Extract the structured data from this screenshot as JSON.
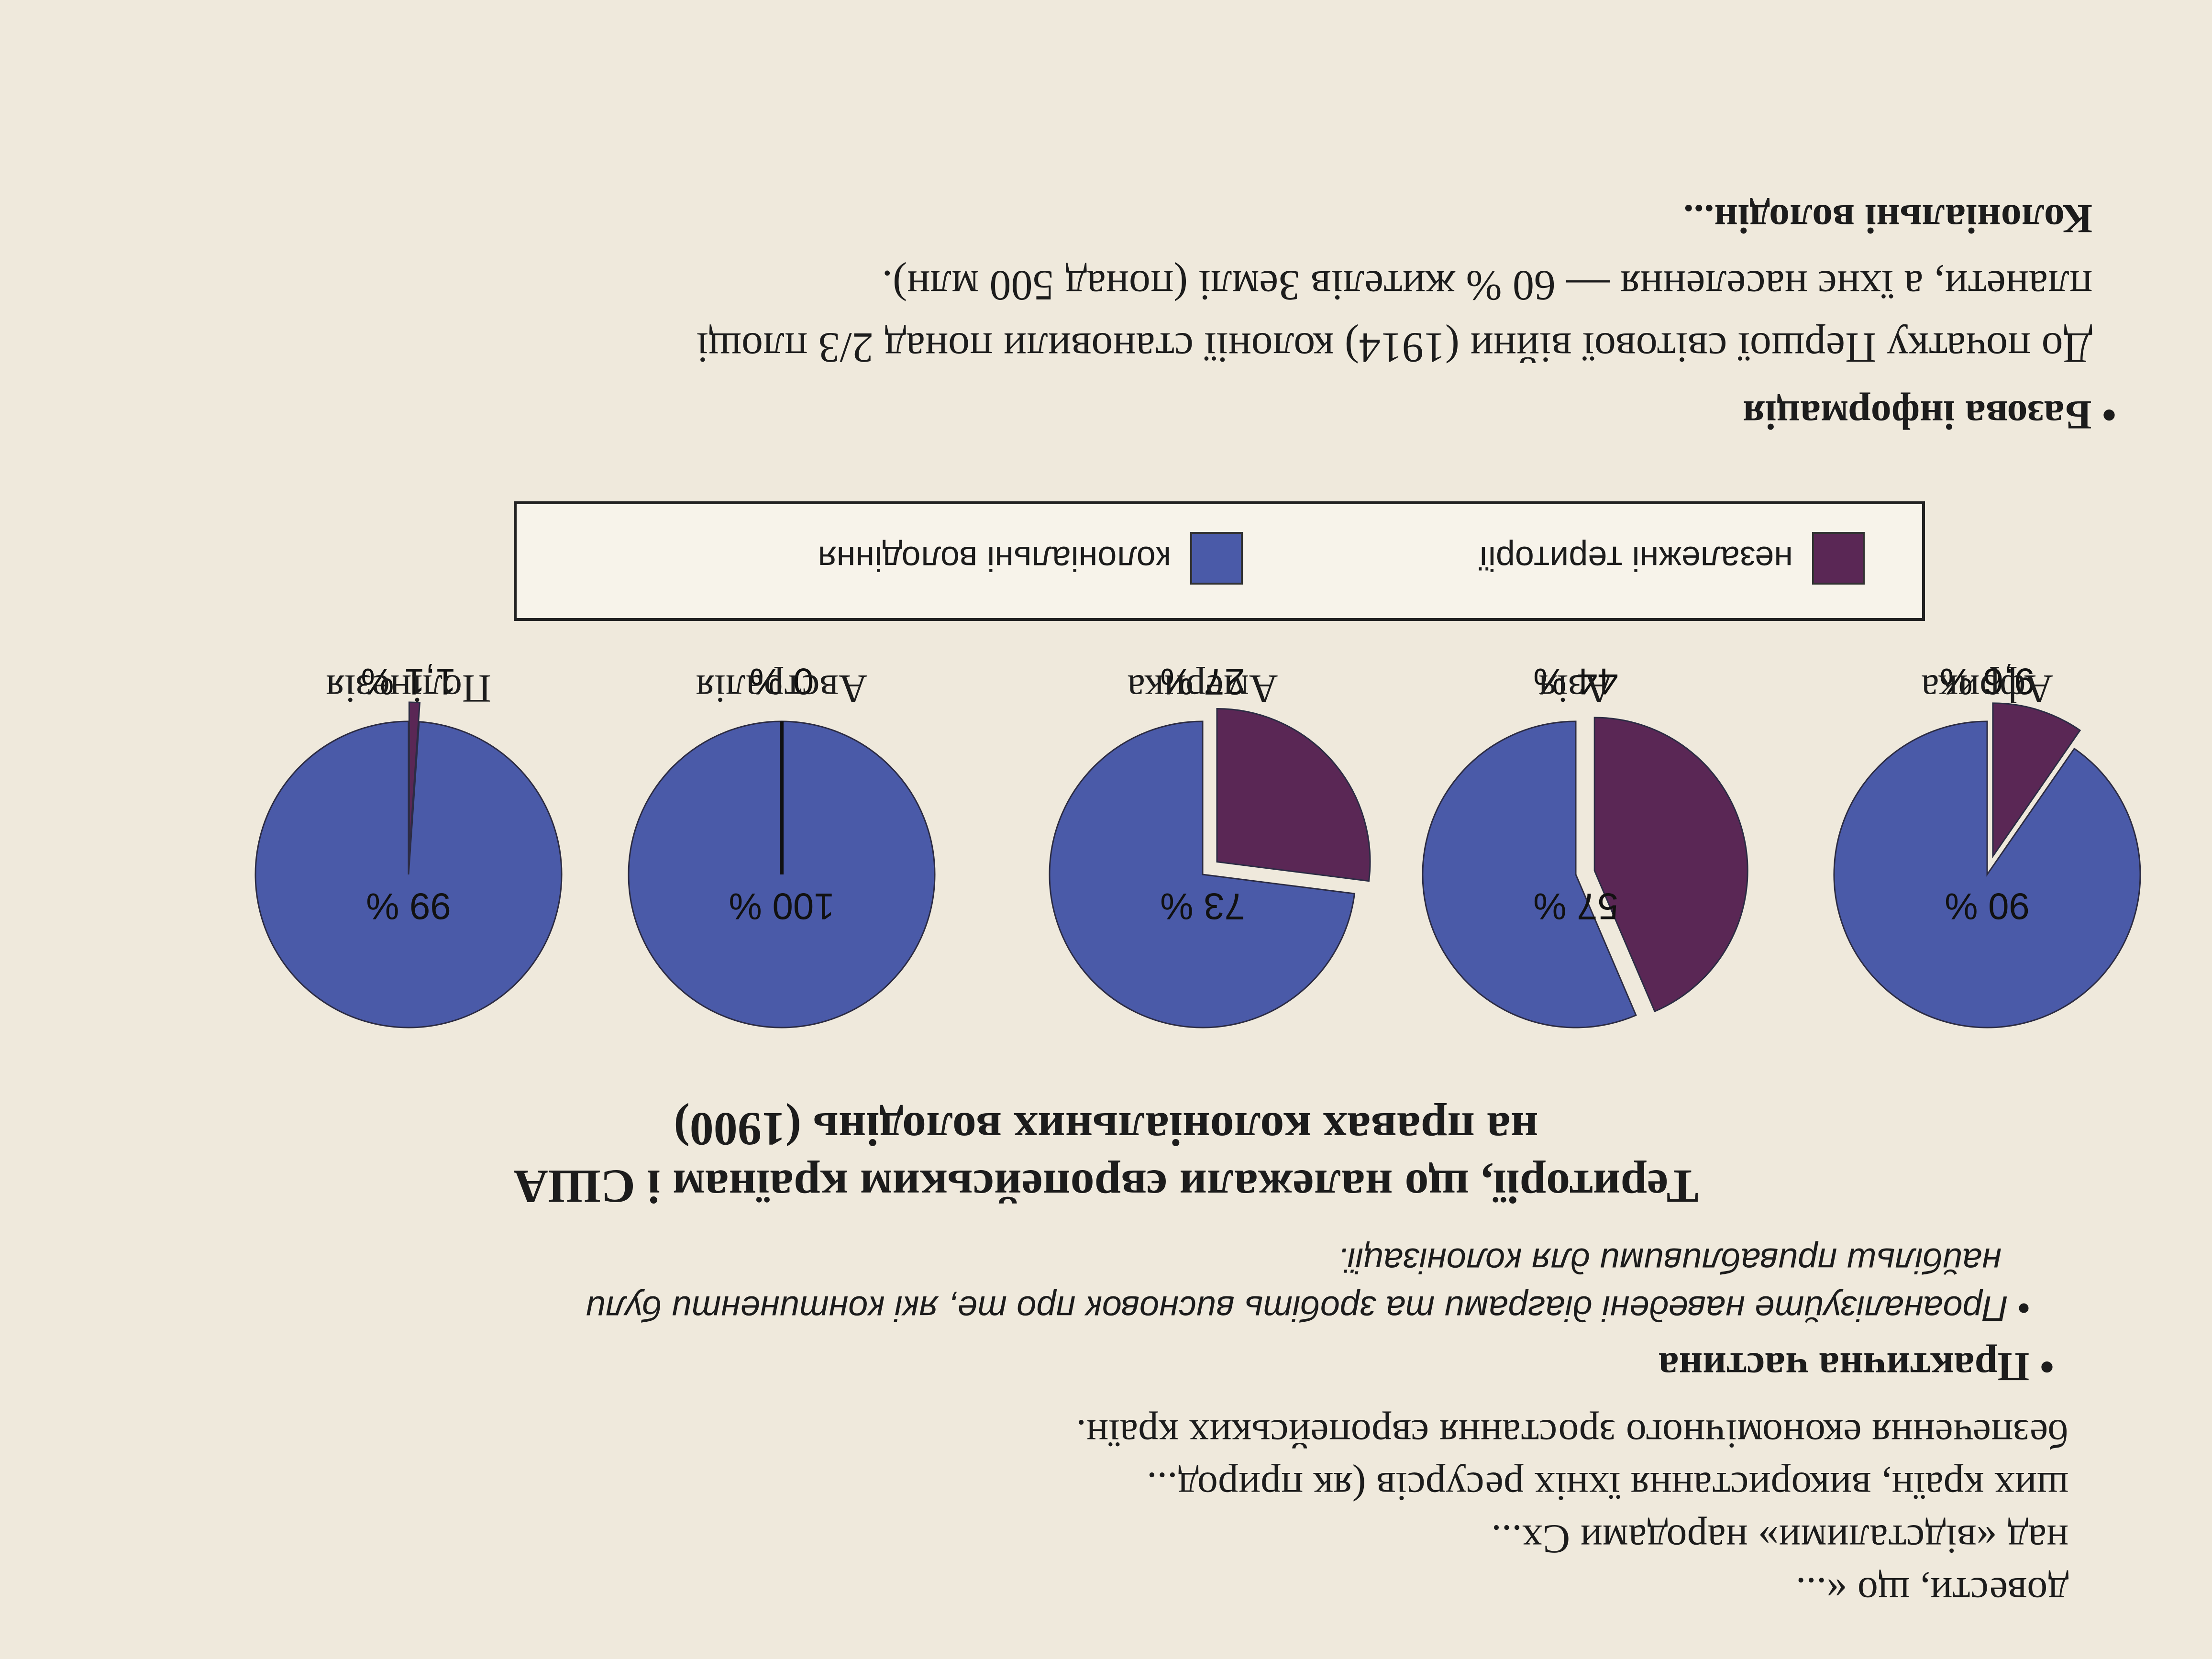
{
  "intro_lines": [
    "довести, що «...",
    "над «відсталими» народами Сх...",
    "ших країн, використання їхніх ресурсів (як природ...",
    "безпечення економічного зростання європейських країн."
  ],
  "practice": {
    "heading": "Практична частина",
    "task_line1": "Проаналізуйте наведені діаграми та зробіть висновок про те, які континенти були",
    "task_line2": "найбільш привабливими для колонізації."
  },
  "chart_title": {
    "line1": "Території, що належали європейським країнам і США",
    "line2": "на правах колоніальних володінь (1900)"
  },
  "colors": {
    "independent": "#5a2755",
    "colonial": "#4a5aa8"
  },
  "legend": {
    "independent": "незалежні території",
    "colonial": "колоніальні володіння"
  },
  "chart_data": {
    "type": "pie",
    "title": "Території, що належали європейським країнам і США на правах колоніальних володінь (1900)",
    "series_names": [
      "незалежні території",
      "колоніальні володіння"
    ],
    "pies": [
      {
        "category": "Африка",
        "independent": 9.6,
        "colonial": 90,
        "independent_label": "9,6 %",
        "colonial_label": "90 %"
      },
      {
        "category": "Азія",
        "independent": 44,
        "colonial": 57,
        "independent_label": "44 %",
        "colonial_label": "57 %"
      },
      {
        "category": "Америка",
        "independent": 27,
        "colonial": 73,
        "independent_label": "27 %",
        "colonial_label": "73 %"
      },
      {
        "category": "Австралія",
        "independent": 0,
        "colonial": 100,
        "independent_label": "0 %",
        "colonial_label": "100 %"
      },
      {
        "category": "Полінезія",
        "independent": 1.1,
        "colonial": 99,
        "independent_label": "1,1 %",
        "colonial_label": "99 %"
      }
    ]
  },
  "basic_info": {
    "heading": "Базова інформація",
    "line1": "До початку Першої світової війни (1914) колонії становили понад 2/3 площі",
    "line2": "планети, а їхнє населення — 60 % жителів Землі (понад 500 млн).",
    "line3": "Колоніальні володін..."
  }
}
